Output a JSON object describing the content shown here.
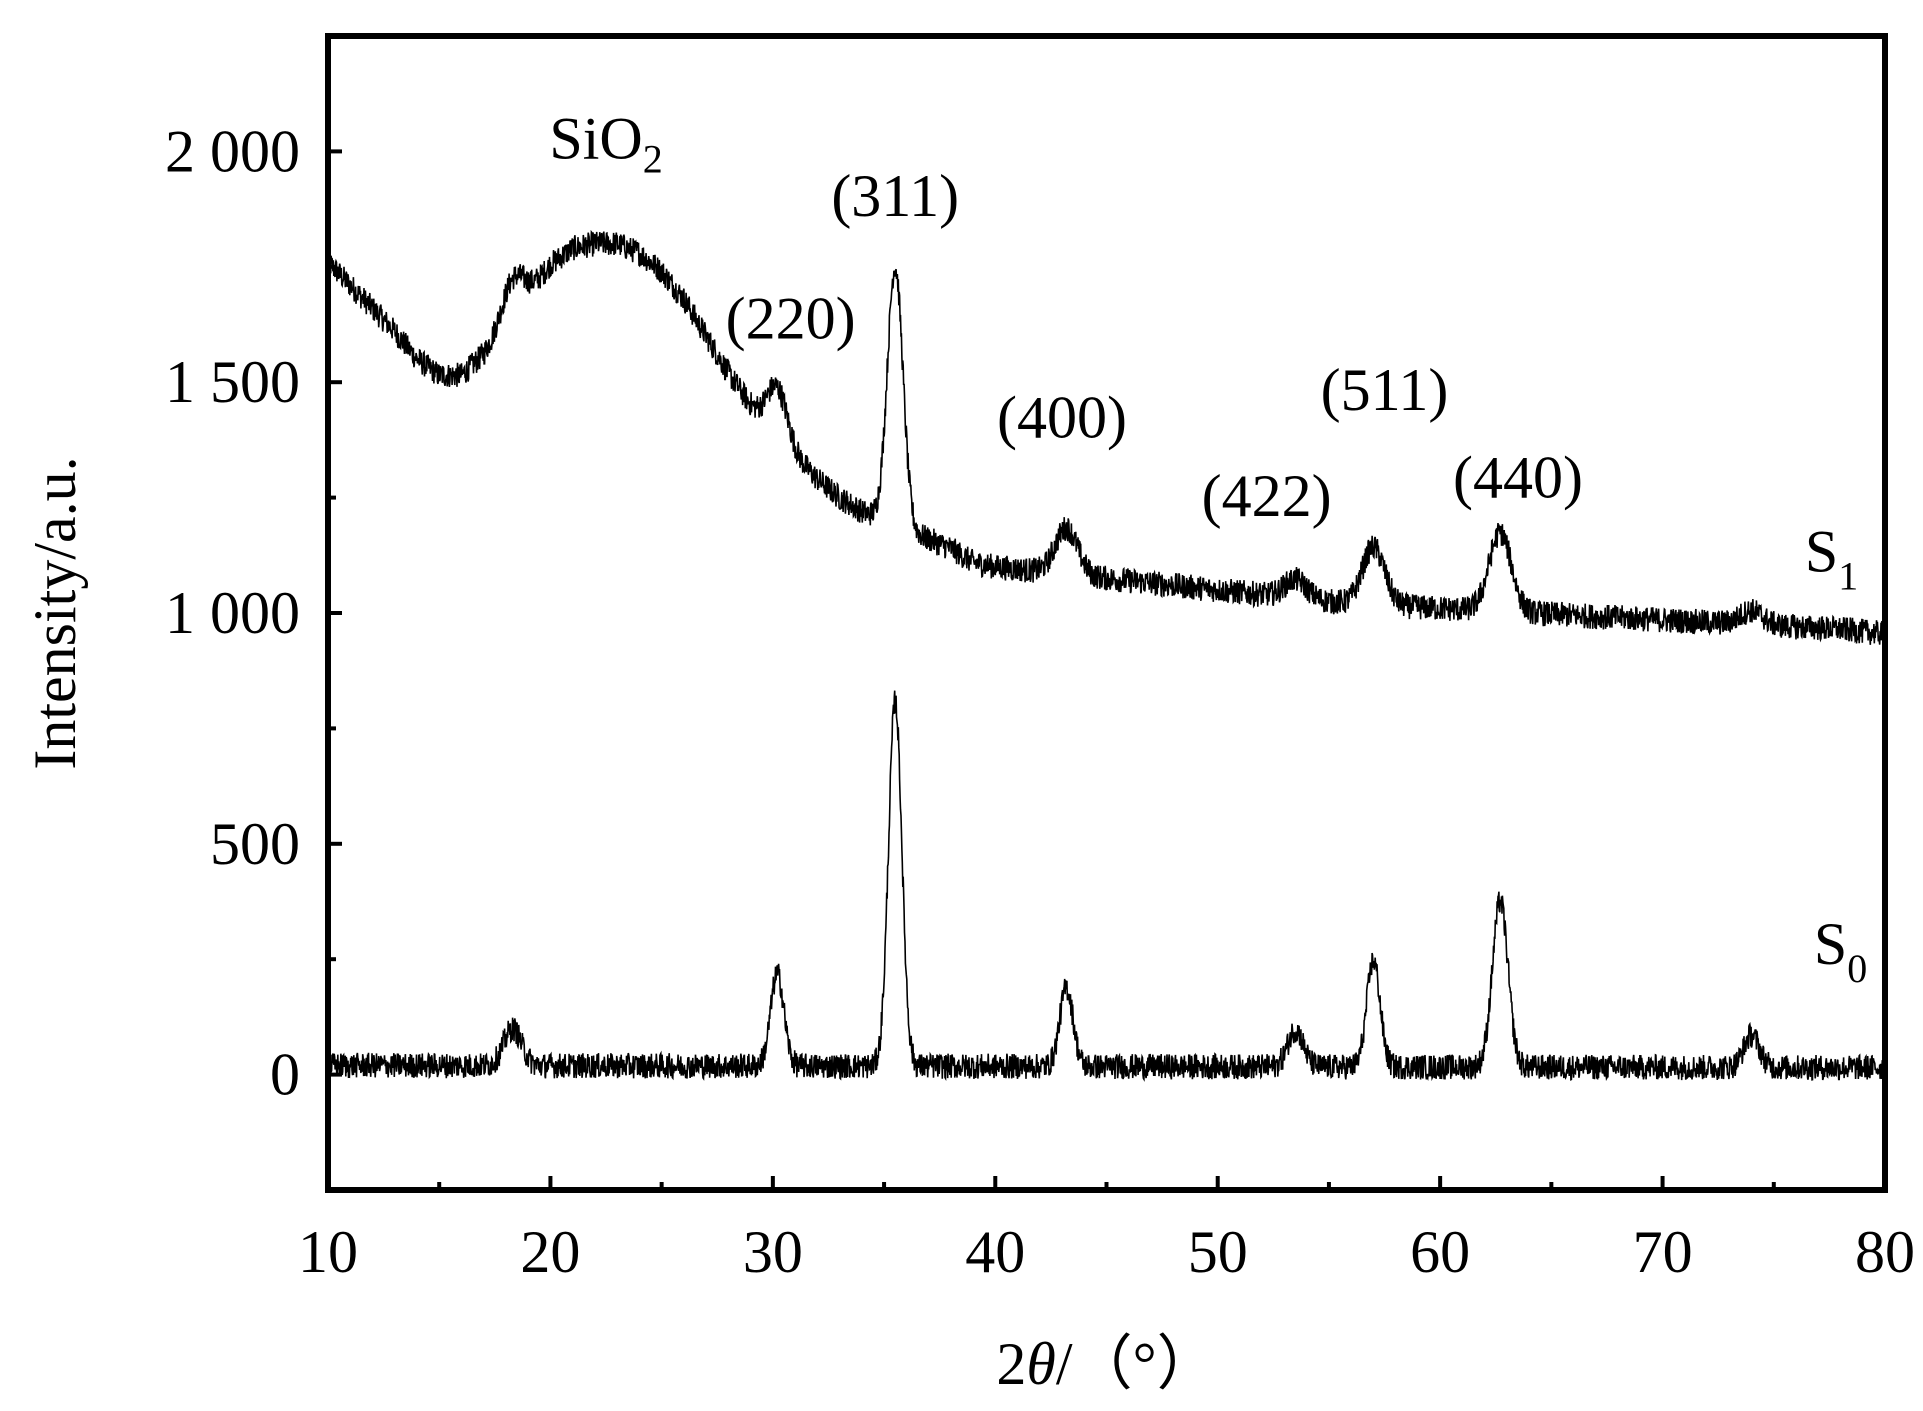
{
  "chart_data": {
    "type": "line",
    "xlabel": {
      "prefix": "2",
      "theta": "θ",
      "suffix": "/（°）"
    },
    "ylabel": "Intensity/a.u.",
    "xlim": [
      10,
      80
    ],
    "ylim": [
      -250,
      2250
    ],
    "x_ticks": [
      10,
      20,
      30,
      40,
      50,
      60,
      70,
      80
    ],
    "x_tick_labels": [
      "10",
      "20",
      "30",
      "40",
      "50",
      "60",
      "70",
      "80"
    ],
    "y_ticks": [
      0,
      500,
      1000,
      1500,
      2000
    ],
    "y_tick_labels": [
      "0",
      "500",
      "1 000",
      "1 500",
      "2 000"
    ],
    "grid": false,
    "series": [
      {
        "name": "S1",
        "label": "S",
        "label_sub": "1",
        "color": "#000000",
        "baseline": [
          [
            10,
            1760
          ],
          [
            11,
            1710
          ],
          [
            12,
            1660
          ],
          [
            13,
            1610
          ],
          [
            14,
            1550
          ],
          [
            15,
            1515
          ],
          [
            16,
            1515
          ],
          [
            17,
            1560
          ],
          [
            18,
            1625
          ],
          [
            19,
            1690
          ],
          [
            20,
            1755
          ],
          [
            21,
            1790
          ],
          [
            22,
            1800
          ],
          [
            23,
            1800
          ],
          [
            24,
            1780
          ],
          [
            25,
            1740
          ],
          [
            26,
            1680
          ],
          [
            27,
            1600
          ],
          [
            28,
            1520
          ],
          [
            29,
            1450
          ],
          [
            30,
            1390
          ],
          [
            31,
            1340
          ],
          [
            32,
            1290
          ],
          [
            33,
            1250
          ],
          [
            34,
            1220
          ],
          [
            35,
            1200
          ],
          [
            36,
            1180
          ],
          [
            37,
            1160
          ],
          [
            38,
            1140
          ],
          [
            39,
            1110
          ],
          [
            40,
            1100
          ],
          [
            42,
            1090
          ],
          [
            44,
            1080
          ],
          [
            46,
            1070
          ],
          [
            48,
            1060
          ],
          [
            50,
            1050
          ],
          [
            52,
            1040
          ],
          [
            54,
            1030
          ],
          [
            56,
            1020
          ],
          [
            58,
            1015
          ],
          [
            60,
            1010
          ],
          [
            62,
            1005
          ],
          [
            64,
            1000
          ],
          [
            66,
            995
          ],
          [
            68,
            990
          ],
          [
            70,
            985
          ],
          [
            72,
            980
          ],
          [
            74,
            975
          ],
          [
            76,
            970
          ],
          [
            78,
            965
          ],
          [
            80,
            955
          ]
        ],
        "peaks": [
          [
            18.3,
            80,
            0.5
          ],
          [
            30.2,
            110,
            0.45
          ],
          [
            35.5,
            560,
            0.35
          ],
          [
            43.2,
            100,
            0.5
          ],
          [
            53.5,
            40,
            0.5
          ],
          [
            57.0,
            125,
            0.5
          ],
          [
            62.7,
            170,
            0.5
          ],
          [
            74.0,
            30,
            0.5
          ]
        ]
      },
      {
        "name": "S0",
        "label": "S",
        "label_sub": "0",
        "color": "#000000",
        "baseline": [
          [
            10,
            20
          ],
          [
            80,
            15
          ]
        ],
        "peaks": [
          [
            18.3,
            80,
            0.4
          ],
          [
            30.2,
            200,
            0.3
          ],
          [
            35.5,
            790,
            0.3
          ],
          [
            43.2,
            170,
            0.3
          ],
          [
            53.5,
            80,
            0.35
          ],
          [
            57.0,
            230,
            0.3
          ],
          [
            62.7,
            360,
            0.35
          ],
          [
            74.0,
            70,
            0.35
          ]
        ]
      }
    ],
    "annotations": [
      {
        "text": "SiO",
        "sub": "2",
        "x": 22.5,
        "y": 1985
      },
      {
        "text": "(311)",
        "x": 35.5,
        "y": 1860
      },
      {
        "text": "(220)",
        "x": 30.8,
        "y": 1595
      },
      {
        "text": "(400)",
        "x": 43.0,
        "y": 1380
      },
      {
        "text": "(422)",
        "x": 52.2,
        "y": 1210
      },
      {
        "text": "(511)",
        "x": 57.5,
        "y": 1440
      },
      {
        "text": "(440)",
        "x": 63.5,
        "y": 1250
      }
    ],
    "series_label_positions": [
      {
        "series": "S1",
        "x": 76.4,
        "y": 1090
      },
      {
        "series": "S0",
        "x": 76.8,
        "y": 240
      }
    ]
  }
}
